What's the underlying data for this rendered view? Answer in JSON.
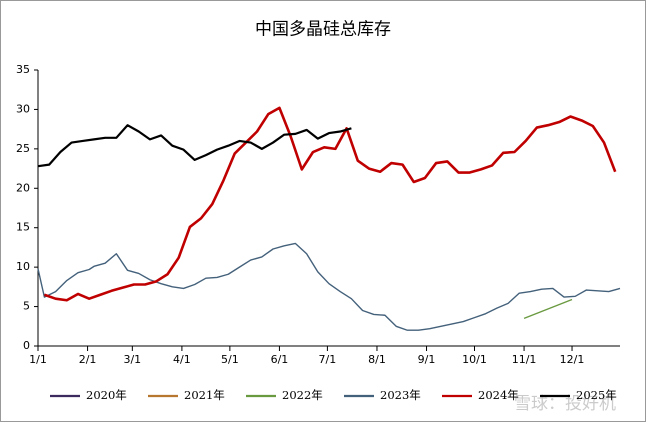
{
  "chart_data": {
    "type": "line",
    "title": "中国多晶硅总库存",
    "xlim": [
      0,
      364
    ],
    "xticks": [
      {
        "value": 0,
        "label": "1/1"
      },
      {
        "value": 31,
        "label": "2/1"
      },
      {
        "value": 59,
        "label": "3/1"
      },
      {
        "value": 90,
        "label": "4/1"
      },
      {
        "value": 120,
        "label": "5/1"
      },
      {
        "value": 151,
        "label": "6/1"
      },
      {
        "value": 181,
        "label": "7/1"
      },
      {
        "value": 212,
        "label": "8/1"
      },
      {
        "value": 243,
        "label": "9/1"
      },
      {
        "value": 273,
        "label": "10/1"
      },
      {
        "value": 304,
        "label": "11/1"
      },
      {
        "value": 334,
        "label": "12/1"
      }
    ],
    "ylim": [
      0,
      35
    ],
    "yticks": [
      0,
      5,
      10,
      15,
      20,
      25,
      30,
      35
    ],
    "grid": false,
    "series": [
      {
        "name": "2020年",
        "color": "#3a2a5e",
        "x": [],
        "values": []
      },
      {
        "name": "2021年",
        "color": "#b8772f",
        "x": [],
        "values": []
      },
      {
        "name": "2022年",
        "color": "#6a9a40",
        "x": [
          304,
          334
        ],
        "values": [
          3.5,
          5.9
        ]
      },
      {
        "name": "2023年",
        "color": "#44617b",
        "x": [
          0,
          4,
          11,
          18,
          25,
          32,
          35,
          42,
          49,
          56,
          63,
          70,
          77,
          84,
          91,
          98,
          105,
          112,
          119,
          126,
          133,
          140,
          147,
          154,
          161,
          168,
          175,
          182,
          189,
          196,
          203,
          210,
          217,
          224,
          231,
          238,
          245,
          252,
          259,
          266,
          273,
          280,
          287,
          294,
          301,
          308,
          315,
          322,
          329,
          336,
          343,
          350,
          357,
          364
        ],
        "values": [
          9.8,
          6.2,
          6.9,
          8.3,
          9.3,
          9.7,
          10.1,
          10.5,
          11.7,
          9.6,
          9.2,
          8.4,
          7.9,
          7.5,
          7.3,
          7.8,
          8.6,
          8.7,
          9.1,
          10.0,
          10.9,
          11.3,
          12.3,
          12.7,
          13.0,
          11.7,
          9.4,
          7.9,
          6.9,
          6.0,
          4.5,
          4.0,
          3.9,
          2.5,
          2.0,
          2.0,
          2.2,
          2.5,
          2.8,
          3.1,
          3.6,
          4.1,
          4.8,
          5.4,
          6.7,
          6.9,
          7.2,
          7.3,
          6.2,
          6.3,
          7.1,
          7.0,
          6.9,
          7.3
        ]
      },
      {
        "name": "2024年",
        "color": "#c00000",
        "x": [
          4,
          11,
          18,
          25,
          32,
          39,
          46,
          53,
          60,
          67,
          74,
          81,
          88,
          95,
          102,
          109,
          116,
          123,
          130,
          137,
          144,
          151,
          158,
          165,
          172,
          179,
          186,
          193,
          200,
          207,
          214,
          221,
          228,
          235,
          242,
          249,
          256,
          263,
          270,
          277,
          284,
          291,
          298,
          305,
          312,
          319,
          326,
          333,
          340,
          347,
          354,
          361
        ],
        "values": [
          6.5,
          6.0,
          5.8,
          6.6,
          6.0,
          6.5,
          7.0,
          7.4,
          7.8,
          7.8,
          8.2,
          9.1,
          11.2,
          15.1,
          16.2,
          18.0,
          21.0,
          24.4,
          25.8,
          27.2,
          29.4,
          30.2,
          26.6,
          22.4,
          24.6,
          25.2,
          25.0,
          27.6,
          23.5,
          22.5,
          22.1,
          23.2,
          23.0,
          20.8,
          21.3,
          23.2,
          23.4,
          22.0,
          22.0,
          22.4,
          22.9,
          24.5,
          24.6,
          26.0,
          27.7,
          28.0,
          28.4,
          29.1,
          28.6,
          27.9,
          25.8,
          22.1
        ]
      },
      {
        "name": "2025年",
        "color": "#000000",
        "x": [
          0,
          7,
          14,
          21,
          28,
          35,
          42,
          49,
          56,
          63,
          70,
          77,
          84,
          91,
          98,
          105,
          112,
          119,
          126,
          133,
          140,
          147,
          154,
          161,
          168,
          175,
          182,
          189,
          196
        ],
        "values": [
          22.8,
          23.0,
          24.6,
          25.8,
          26.0,
          26.2,
          26.4,
          26.4,
          28.0,
          27.2,
          26.2,
          26.7,
          25.4,
          24.9,
          23.6,
          24.2,
          24.9,
          25.4,
          26.0,
          25.8,
          25.0,
          25.8,
          26.8,
          26.9,
          27.4,
          26.3,
          27.0,
          27.2,
          27.6
        ]
      }
    ],
    "watermark": "雪球：投好机"
  }
}
